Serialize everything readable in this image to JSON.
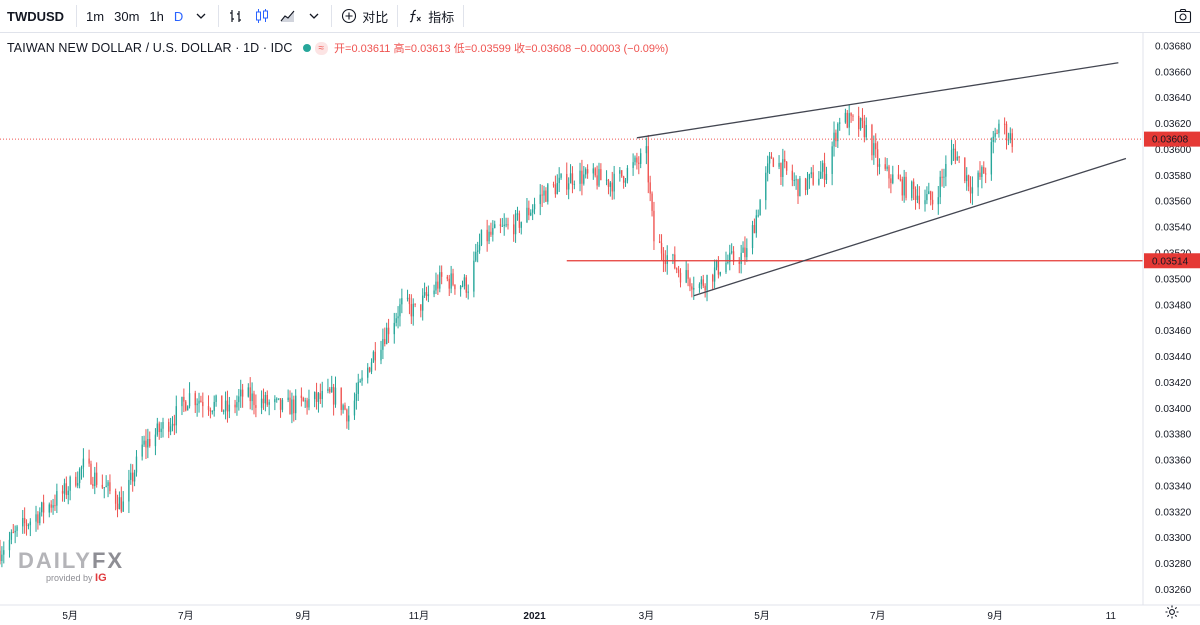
{
  "toolbar": {
    "symbol": "TWDUSD",
    "intervals": [
      "1m",
      "30m",
      "1h",
      "D"
    ],
    "active_interval": "D",
    "compare_label": "对比",
    "indicators_label": "指标"
  },
  "legend": {
    "title": "TAIWAN NEW DOLLAR / U.S. DOLLAR · 1D · IDC",
    "badge": "≈",
    "open_label": "开=",
    "open": "0.03611",
    "high_label": "高=",
    "high": "0.03613",
    "low_label": "低=",
    "low": "0.03599",
    "close_label": "收=",
    "close": "0.03608",
    "change": "−0.00003 (−0.09%)"
  },
  "watermark": {
    "brand": "DAILY",
    "brand_fx": "FX",
    "provided_by": "provided by",
    "ig": "IG"
  },
  "colors": {
    "up": "#26a69a",
    "down": "#ef5350",
    "trendline": "#434651",
    "support": "#e53935",
    "axis_text": "#131722",
    "last_price_tag": "#e53935"
  },
  "chart_data": {
    "type": "candlestick",
    "y_axis": {
      "ticks": [
        "0.03680",
        "0.03660",
        "0.03640",
        "0.03620",
        "0.03600",
        "0.03580",
        "0.03560",
        "0.03540",
        "0.03520",
        "0.03500",
        "0.03480",
        "0.03460",
        "0.03440",
        "0.03420",
        "0.03400",
        "0.03380",
        "0.03360",
        "0.03340",
        "0.03320",
        "0.03300",
        "0.03280",
        "0.03260"
      ],
      "range": [
        0.03248,
        0.0369
      ]
    },
    "x_axis": {
      "ticks": [
        "5月",
        "7月",
        "9月",
        "11月",
        "2021",
        "3月",
        "5月",
        "7月",
        "9月",
        "11"
      ],
      "range": [
        "2020-03-25",
        "2021-11-18"
      ]
    },
    "last_price": "0.03608",
    "support_price": "0.03514",
    "trendlines": [
      {
        "name": "upper",
        "from": [
          "2021-02-24",
          0.03609
        ],
        "to": [
          "2021-11-05",
          0.03667
        ]
      },
      {
        "name": "lower",
        "from": [
          "2021-03-26",
          0.03487
        ],
        "to": [
          "2021-11-09",
          0.03593
        ]
      }
    ],
    "support_line": {
      "from": "2021-01-18",
      "price": 0.03514
    },
    "path": [
      [
        "2020-03-25",
        0.0329
      ],
      [
        "2020-04-07",
        0.0331
      ],
      [
        "2020-04-28",
        0.03335
      ],
      [
        "2020-05-08",
        0.03355
      ],
      [
        "2020-05-29",
        0.03325
      ],
      [
        "2020-06-08",
        0.0337
      ],
      [
        "2020-06-26",
        0.03395
      ],
      [
        "2020-07-03",
        0.0341
      ],
      [
        "2020-07-24",
        0.03398
      ],
      [
        "2020-07-31",
        0.0341
      ],
      [
        "2020-08-21",
        0.034
      ],
      [
        "2020-09-18",
        0.0341
      ],
      [
        "2020-09-25",
        0.03395
      ],
      [
        "2020-10-09",
        0.03445
      ],
      [
        "2020-10-23",
        0.0348
      ],
      [
        "2020-10-30",
        0.03475
      ],
      [
        "2020-11-13",
        0.035
      ],
      [
        "2020-11-27",
        0.03495
      ],
      [
        "2020-12-04",
        0.0353
      ],
      [
        "2020-12-25",
        0.03545
      ],
      [
        "2021-01-05",
        0.03565
      ],
      [
        "2021-01-22",
        0.0358
      ],
      [
        "2021-02-12",
        0.03575
      ],
      [
        "2021-03-01",
        0.03595
      ],
      [
        "2021-03-05",
        0.0353
      ],
      [
        "2021-03-19",
        0.03505
      ],
      [
        "2021-03-29",
        0.03495
      ],
      [
        "2021-04-09",
        0.0351
      ],
      [
        "2021-04-23",
        0.0352
      ],
      [
        "2021-05-06",
        0.03595
      ],
      [
        "2021-05-21",
        0.0357
      ],
      [
        "2021-06-04",
        0.03585
      ],
      [
        "2021-06-11",
        0.03625
      ],
      [
        "2021-06-25",
        0.03615
      ],
      [
        "2021-07-02",
        0.03585
      ],
      [
        "2021-07-16",
        0.0357
      ],
      [
        "2021-07-30",
        0.0356
      ],
      [
        "2021-08-10",
        0.036
      ],
      [
        "2021-08-20",
        0.0357
      ],
      [
        "2021-08-27",
        0.03585
      ],
      [
        "2021-09-03",
        0.0362
      ],
      [
        "2021-09-10",
        0.03608
      ]
    ]
  }
}
